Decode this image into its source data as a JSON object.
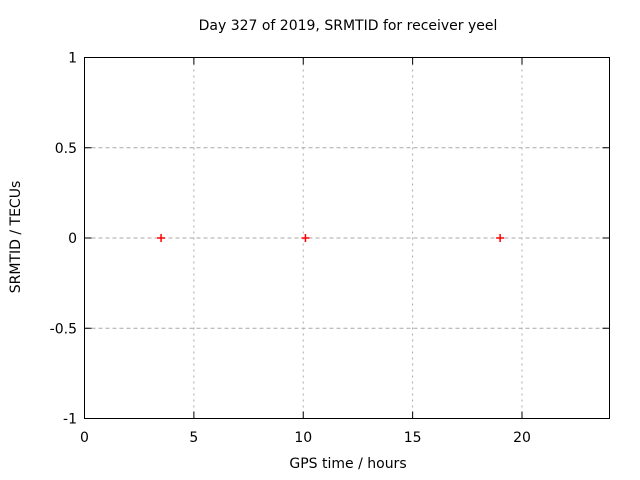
{
  "chart_data": {
    "type": "scatter",
    "title": "Day 327 of 2019, SRMTID for receiver yeel",
    "xlabel": "GPS time / hours",
    "ylabel": "SRMTID / TECUs",
    "xlim": [
      0,
      24
    ],
    "ylim": [
      -1,
      1
    ],
    "xticks": {
      "values": [
        0,
        5,
        10,
        15,
        20
      ],
      "labels": [
        "0",
        "5",
        "10",
        "15",
        "20"
      ]
    },
    "yticks": {
      "values": [
        -1,
        -0.5,
        0,
        0.5,
        1
      ],
      "labels": [
        "-1",
        "-0.5",
        "0",
        "0.5",
        "1"
      ]
    },
    "grid": true,
    "legend": false,
    "series": [
      {
        "name": "SRMTID",
        "marker": "plus",
        "color": "#ff0000",
        "points": [
          {
            "x": 3.5,
            "y": 0.0
          },
          {
            "x": 10.1,
            "y": 0.0
          },
          {
            "x": 19.0,
            "y": 0.0
          }
        ]
      }
    ],
    "colors": {
      "background": "#ffffff",
      "axis": "#000000",
      "grid": "#a9a9a9",
      "marker": "#ff0000"
    }
  }
}
